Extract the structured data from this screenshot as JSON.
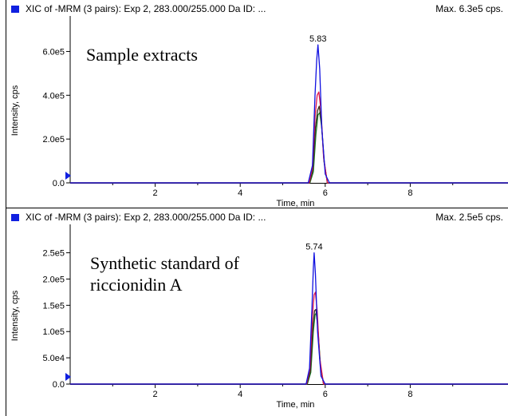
{
  "colors": {
    "blue": "#1010e0",
    "red": "#e01a4a",
    "dark": "#3a2a1a",
    "green": "#1a7a2a",
    "legend": "#1020e0"
  },
  "panels": [
    {
      "header_title": "XIC of -MRM (3 pairs): Exp 2, 283.000/255.000 Da ID: ...",
      "header_max": "Max. 6.3e5 cps.",
      "annotation": [
        "Sample extracts"
      ],
      "chart_data": {
        "type": "line",
        "title": "",
        "xlabel": "Time, min",
        "ylabel": "Intensity, cps",
        "xlim": [
          0,
          10.3
        ],
        "ylim": [
          0,
          660000.0
        ],
        "xticks": [
          2,
          4,
          6,
          8
        ],
        "yticks": [
          {
            "value": 0,
            "label": "0.0"
          },
          {
            "value": 200000,
            "label": "2.0e5"
          },
          {
            "value": 400000,
            "label": "4.0e5"
          },
          {
            "value": 600000,
            "label": "6.0e5"
          }
        ],
        "grid": false,
        "peak_label": {
          "x": 5.83,
          "y": 630000,
          "text": "5.83"
        },
        "series": [
          {
            "color_key": "blue",
            "x": [
              0,
              5.6,
              5.7,
              5.76,
              5.8,
              5.83,
              5.87,
              5.92,
              6.0,
              6.1,
              10.3
            ],
            "values": [
              0,
              0,
              80000,
              400000,
              560000,
              630000,
              520000,
              250000,
              40000,
              0,
              0
            ]
          },
          {
            "color_key": "red",
            "x": [
              0,
              5.62,
              5.7,
              5.76,
              5.81,
              5.85,
              5.9,
              5.96,
              6.05,
              10.3
            ],
            "values": [
              0,
              0,
              70000,
              300000,
              400000,
              415000,
              330000,
              120000,
              0,
              0
            ]
          },
          {
            "color_key": "dark",
            "x": [
              0,
              5.63,
              5.71,
              5.77,
              5.82,
              5.86,
              5.91,
              5.97,
              6.05,
              10.3
            ],
            "values": [
              0,
              0,
              60000,
              250000,
              330000,
              350000,
              280000,
              100000,
              0,
              0
            ]
          },
          {
            "color_key": "green",
            "x": [
              0,
              5.64,
              5.72,
              5.78,
              5.83,
              5.87,
              5.92,
              5.98,
              6.05,
              10.3
            ],
            "values": [
              0,
              0,
              50000,
              220000,
              310000,
              320000,
              250000,
              90000,
              0,
              0
            ]
          }
        ]
      }
    },
    {
      "header_title": "XIC of -MRM (3 pairs): Exp 2, 283.000/255.000 Da ID: ...",
      "header_max": "Max. 2.5e5 cps.",
      "annotation": [
        "Synthetic standard of",
        "riccionidin A"
      ],
      "chart_data": {
        "type": "line",
        "title": "",
        "xlabel": "Time, min",
        "ylabel": "Intensity, cps",
        "xlim": [
          0,
          10.3
        ],
        "ylim": [
          0,
          260000.0
        ],
        "xticks": [
          2,
          4,
          6,
          8
        ],
        "yticks": [
          {
            "value": 0,
            "label": "0.0"
          },
          {
            "value": 50000,
            "label": "5.0e4"
          },
          {
            "value": 100000,
            "label": "1.0e5"
          },
          {
            "value": 150000,
            "label": "1.5e5"
          },
          {
            "value": 200000,
            "label": "2.0e5"
          },
          {
            "value": 250000,
            "label": "2.5e5"
          }
        ],
        "grid": false,
        "peak_label": {
          "x": 5.74,
          "y": 250000,
          "text": "5.74"
        },
        "series": [
          {
            "color_key": "blue",
            "x": [
              0,
              5.55,
              5.63,
              5.69,
              5.72,
              5.74,
              5.77,
              5.82,
              5.9,
              6.0,
              10.3
            ],
            "values": [
              0,
              0,
              30000,
              150000,
              220000,
              250000,
              210000,
              100000,
              15000,
              0,
              0
            ]
          },
          {
            "color_key": "red",
            "x": [
              0,
              5.56,
              5.64,
              5.7,
              5.74,
              5.77,
              5.81,
              5.87,
              5.96,
              10.3
            ],
            "values": [
              0,
              0,
              30000,
              130000,
              170000,
              175000,
              140000,
              50000,
              0,
              0
            ]
          },
          {
            "color_key": "dark",
            "x": [
              0,
              5.57,
              5.65,
              5.71,
              5.75,
              5.78,
              5.82,
              5.88,
              5.96,
              10.3
            ],
            "values": [
              0,
              0,
              25000,
              110000,
              140000,
              142000,
              115000,
              40000,
              0,
              0
            ]
          },
          {
            "color_key": "green",
            "x": [
              0,
              5.58,
              5.66,
              5.72,
              5.76,
              5.79,
              5.83,
              5.89,
              5.96,
              10.3
            ],
            "values": [
              0,
              0,
              22000,
              100000,
              132000,
              135000,
              105000,
              35000,
              0,
              0
            ]
          }
        ]
      }
    }
  ]
}
